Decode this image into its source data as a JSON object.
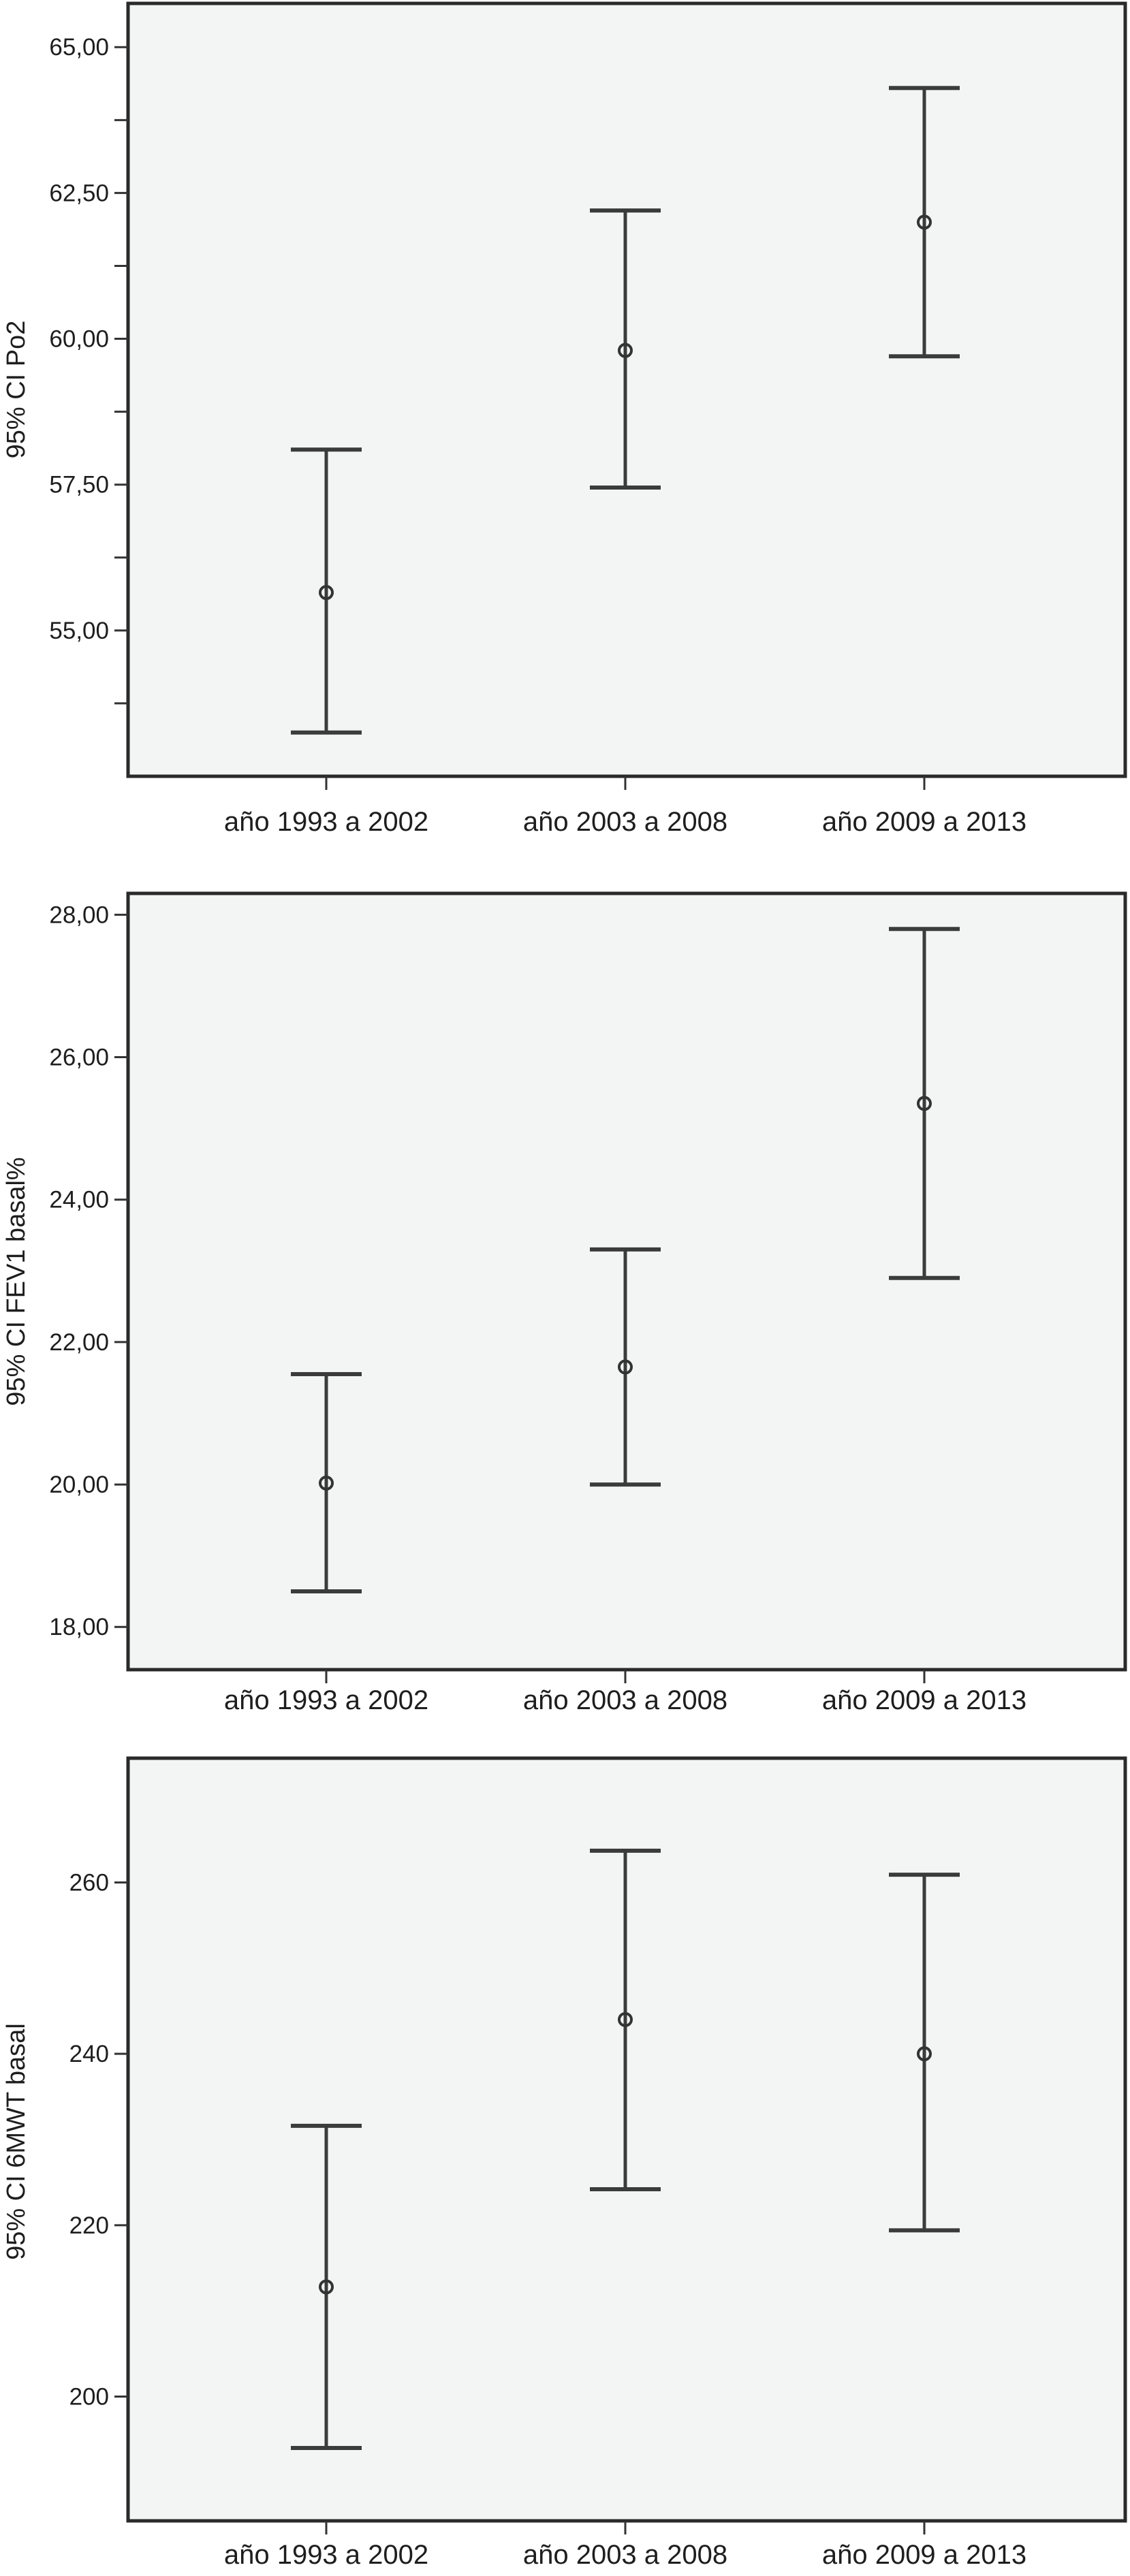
{
  "chart_data": [
    {
      "type": "errorbar",
      "ylabel": "95% CI Po2",
      "categories": [
        "año 1993 a 2002",
        "año 2003 a 2008",
        "año 2009 a 2013"
      ],
      "mean": [
        55.65,
        59.8,
        62.0
      ],
      "lower": [
        53.25,
        57.45,
        59.7
      ],
      "upper": [
        58.1,
        62.2,
        64.3
      ],
      "ylim": [
        52.5,
        65.75
      ],
      "yticks": [
        55,
        57.5,
        60,
        62.5,
        65
      ],
      "ytick_labels": [
        "55,00",
        "57,50",
        "60,00",
        "62,50",
        "65,00"
      ],
      "minor_ticks": [
        53.75,
        56.25,
        58.75,
        61.25,
        63.75
      ],
      "grid": false
    },
    {
      "type": "errorbar",
      "ylabel": "95% CI FEV1  basal%",
      "categories": [
        "año 1993 a 2002",
        "año 2003 a 2008",
        "año 2009 a 2013"
      ],
      "mean": [
        20.02,
        21.65,
        25.35
      ],
      "lower": [
        18.5,
        20.0,
        22.9
      ],
      "upper": [
        21.55,
        23.3,
        27.8
      ],
      "ylim": [
        17.4,
        28.3
      ],
      "yticks": [
        18,
        20,
        22,
        24,
        26,
        28
      ],
      "ytick_labels": [
        "18,00",
        "20,00",
        "22,00",
        "24,00",
        "26,00",
        "28,00"
      ],
      "minor_ticks": [],
      "grid": false
    },
    {
      "type": "errorbar",
      "ylabel": "95% CI 6MWT  basal",
      "categories": [
        "año 1993 a 2002",
        "año 2003 a 2008",
        "año 2009 a 2013"
      ],
      "mean": [
        212.8,
        244.0,
        240.0
      ],
      "lower": [
        194.0,
        224.2,
        219.4
      ],
      "upper": [
        231.6,
        263.7,
        260.9
      ],
      "ylim": [
        185.5,
        274.5
      ],
      "yticks": [
        200,
        220,
        240,
        260
      ],
      "ytick_labels": [
        "200",
        "220",
        "240",
        "260"
      ],
      "minor_ticks": [],
      "grid": false
    }
  ]
}
